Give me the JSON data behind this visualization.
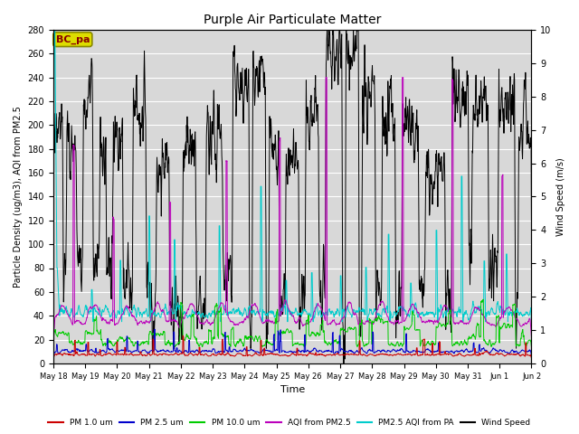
{
  "title": "Purple Air Particulate Matter",
  "xlabel": "Time",
  "ylabel_left": "Particle Density (ug/m3), AQI from PM2.5",
  "ylabel_right": "Wind Speed (m/s)",
  "annotation": "BC_pa",
  "ylim_left": [
    0,
    280
  ],
  "ylim_right": [
    0.0,
    10.0
  ],
  "yticks_left": [
    0,
    20,
    40,
    60,
    80,
    100,
    120,
    140,
    160,
    180,
    200,
    220,
    240,
    260,
    280
  ],
  "yticks_right": [
    0.0,
    1.0,
    2.0,
    3.0,
    4.0,
    5.0,
    6.0,
    7.0,
    8.0,
    9.0,
    10.0
  ],
  "xtick_labels": [
    "May 18",
    "May 19",
    "May 20",
    "May 21",
    "May 22",
    "May 23",
    "May 24",
    "May 25",
    "May 26",
    "May 27",
    "May 28",
    "May 29",
    "May 30",
    "May 31",
    "Jun 1",
    "Jun 2"
  ],
  "colors": {
    "pm1": "#cc0000",
    "pm25": "#0000cc",
    "pm10": "#00cc00",
    "aqi_pm25": "#bb00bb",
    "aqi_pa": "#00cccc",
    "wind": "#000000"
  },
  "legend_labels": [
    "PM 1.0 um",
    "PM 2.5 um",
    "PM 10.0 um",
    "AQI from PM2.5",
    "PM2.5 AQI from PA",
    "Wind Speed"
  ],
  "plot_bg_color": "#d8d8d8",
  "grid_color": "#ffffff",
  "annotation_box_color": "#dddd00",
  "annotation_text_color": "#880000",
  "annotation_box_edge": "#888800",
  "n_points": 1440,
  "n_days": 15
}
